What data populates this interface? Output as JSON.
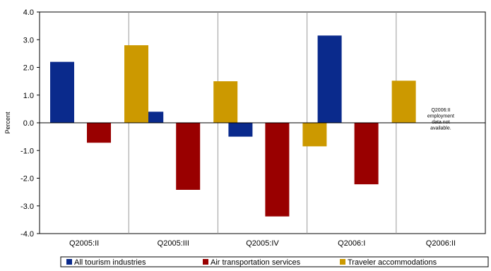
{
  "chart_data": {
    "type": "bar",
    "ylabel": "Percent",
    "ylim": [
      -4.0,
      4.0
    ],
    "y_ticks": [
      "4.0",
      "3.0",
      "2.0",
      "1.0",
      "0.0",
      "-1.0",
      "-2.0",
      "-3.0",
      "-4.0"
    ],
    "y_tick_values": [
      4,
      3,
      2,
      1,
      0,
      -1,
      -2,
      -3,
      -4
    ],
    "categories": [
      "Q2005:II",
      "Q2005:III",
      "Q2005:IV",
      "Q2006:I",
      "Q2006:II"
    ],
    "series": [
      {
        "name": "All tourism industries",
        "color": "#0a2a8c",
        "values": [
          2.2,
          0.4,
          -0.5,
          3.15,
          null
        ]
      },
      {
        "name": "Air transportation services",
        "color": "#990000",
        "values": [
          -0.72,
          -2.42,
          -3.38,
          -2.22,
          null
        ]
      },
      {
        "name": "Traveler accommodations",
        "color": "#cc9900",
        "values": [
          2.8,
          1.5,
          -0.85,
          1.52,
          null
        ]
      }
    ],
    "annotation": {
      "category_index": 4,
      "lines": [
        "Q2006:II",
        "employment",
        "data not",
        "available."
      ]
    },
    "grid": "vertical-category-separators",
    "legend_position": "bottom"
  }
}
